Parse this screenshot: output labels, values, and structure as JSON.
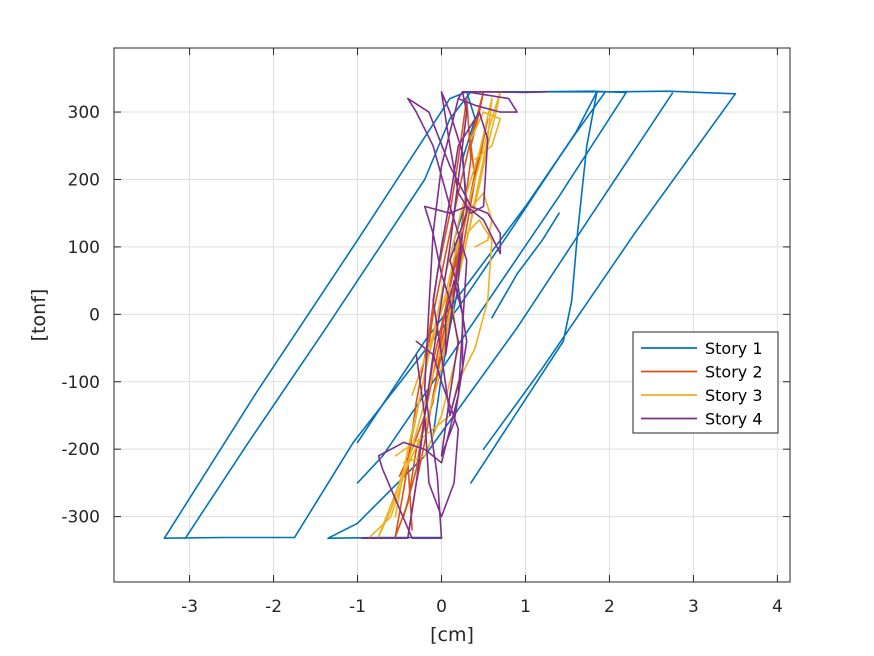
{
  "chart_data": {
    "type": "line",
    "xlabel": "[cm]",
    "ylabel": "[tonf]",
    "xlim": [
      -3.9,
      4.15
    ],
    "ylim": [
      -397,
      395
    ],
    "xticks": [
      -3,
      -2,
      -1,
      0,
      1,
      2,
      3,
      4
    ],
    "yticks": [
      -300,
      -200,
      -100,
      0,
      100,
      200,
      300
    ],
    "grid": true,
    "legend_position": "right",
    "series": [
      {
        "name": "Story 1",
        "color": "#0072BD",
        "segments": [
          {
            "x": [
              0.35,
              1.45,
              1.55,
              1.62,
              1.73,
              1.85
            ],
            "y": [
              -250,
              -40,
              20,
              120,
              250,
              330
            ]
          },
          {
            "x": [
              1.85,
              1.6,
              0.8,
              0.2,
              -1.05,
              -1.75
            ],
            "y": [
              330,
              270,
              120,
              10,
              -190,
              -331
            ]
          },
          {
            "x": [
              -1.75,
              -2.6,
              -3.3
            ],
            "y": [
              -331,
              -331,
              -332
            ]
          },
          {
            "x": [
              -3.3,
              -2.2,
              -1.0,
              0.1,
              0.3
            ],
            "y": [
              -332,
              -115,
              110,
              320,
              330
            ]
          },
          {
            "x": [
              0.3,
              1.1,
              1.8,
              2.2
            ],
            "y": [
              330,
              330,
              331,
              329
            ]
          },
          {
            "x": [
              2.2,
              1.4,
              0.5,
              -0.1,
              -0.7,
              -1.0
            ],
            "y": [
              329,
              175,
              10,
              -100,
              -210,
              -250
            ]
          },
          {
            "x": [
              -3.05,
              -2.3,
              -1.4,
              -0.2,
              0.1,
              0.35
            ],
            "y": [
              -332,
              -190,
              -25,
              200,
              290,
              330
            ]
          },
          {
            "x": [
              0.35,
              1.2,
              2.1,
              2.7,
              3.5
            ],
            "y": [
              330,
              330,
              330,
              331,
              327
            ]
          },
          {
            "x": [
              3.5,
              2.3,
              1.2,
              0.5
            ],
            "y": [
              327,
              120,
              -80,
              -200
            ]
          },
          {
            "x": [
              2.75,
              1.8,
              0.9,
              -0.2,
              -1.0,
              -1.35
            ],
            "y": [
              328,
              150,
              -20,
              -210,
              -310,
              -332
            ]
          },
          {
            "x": [
              -1.35,
              -0.6,
              0.0
            ],
            "y": [
              -332,
              -331,
              -331
            ]
          },
          {
            "x": [
              -1.0,
              -0.2,
              0.4,
              1.0,
              1.55,
              1.95
            ],
            "y": [
              -190,
              -40,
              60,
              160,
              260,
              330
            ]
          },
          {
            "x": [
              0.6,
              0.9,
              1.2,
              1.4
            ],
            "y": [
              -5,
              60,
              110,
              150
            ]
          },
          {
            "x": [
              -0.1,
              0.0,
              0.1,
              0.2,
              0.15,
              0.3,
              0.25,
              0.4,
              0.3
            ],
            "y": [
              -180,
              -90,
              -20,
              40,
              110,
              170,
              230,
              290,
              330
            ]
          }
        ]
      },
      {
        "name": "Story 2",
        "color": "#D95319",
        "segments": [
          {
            "x": [
              -0.4,
              -0.3,
              -0.2,
              -0.1,
              0.0,
              0.1,
              0.2,
              0.3,
              0.4,
              0.35,
              0.45,
              0.5
            ],
            "y": [
              -330,
              -250,
              -190,
              -120,
              -60,
              0,
              60,
              130,
              200,
              250,
              300,
              330
            ]
          },
          {
            "x": [
              0.5,
              0.35,
              0.2,
              0.05,
              -0.1,
              -0.2,
              -0.35,
              -0.45,
              -0.55
            ],
            "y": [
              330,
              260,
              180,
              90,
              0,
              -90,
              -180,
              -260,
              -330
            ]
          },
          {
            "x": [
              -0.55,
              -0.4,
              -0.3,
              -0.1,
              0.0,
              0.15,
              0.25,
              0.35,
              0.3
            ],
            "y": [
              -330,
              -280,
              -200,
              -130,
              -40,
              40,
              140,
              230,
              320
            ]
          },
          {
            "x": [
              0.3,
              0.2,
              0.1,
              -0.05,
              -0.15,
              -0.3,
              -0.4,
              -0.35
            ],
            "y": [
              320,
              230,
              150,
              60,
              -30,
              -130,
              -220,
              -320
            ]
          },
          {
            "x": [
              -0.5,
              -0.35,
              -0.2,
              -0.1,
              0.05,
              0.2,
              0.4,
              0.55
            ],
            "y": [
              -240,
              -200,
              -150,
              -70,
              10,
              110,
              200,
              290
            ]
          },
          {
            "x": [
              0.55,
              0.4,
              0.25,
              0.1,
              -0.05,
              -0.2,
              -0.3,
              -0.45
            ],
            "y": [
              290,
              210,
              120,
              40,
              -60,
              -150,
              -230,
              -300
            ]
          }
        ]
      },
      {
        "name": "Story 3",
        "color": "#EDB120",
        "segments": [
          {
            "x": [
              -0.85,
              -0.6,
              -0.4,
              -0.2,
              0.0,
              0.15,
              0.3,
              0.45,
              0.55,
              0.65,
              0.7
            ],
            "y": [
              -330,
              -300,
              -220,
              -130,
              -50,
              30,
              110,
              190,
              250,
              300,
              330
            ]
          },
          {
            "x": [
              0.7,
              0.55,
              0.4,
              0.2,
              0.05,
              -0.15,
              -0.3,
              -0.45,
              -0.6,
              -0.75
            ],
            "y": [
              330,
              270,
              200,
              110,
              30,
              -60,
              -150,
              -230,
              -290,
              -330
            ]
          },
          {
            "x": [
              -0.75,
              -0.5,
              -0.2,
              0.0,
              0.1,
              0.25,
              0.4,
              0.55,
              0.6
            ],
            "y": [
              -330,
              -250,
              -170,
              -80,
              0,
              80,
              170,
              260,
              320
            ]
          },
          {
            "x": [
              0.6,
              0.45,
              0.25,
              0.05,
              -0.1,
              -0.25,
              -0.4,
              -0.55
            ],
            "y": [
              320,
              240,
              160,
              60,
              -30,
              -120,
              -200,
              -300
            ]
          },
          {
            "x": [
              -0.55,
              -0.2,
              0.1,
              0.2,
              0.4,
              0.55,
              0.6,
              0.45,
              0.3
            ],
            "y": [
              -210,
              -180,
              -150,
              -100,
              -50,
              20,
              110,
              140,
              120
            ]
          },
          {
            "x": [
              0.3,
              0.5,
              0.6,
              0.55,
              0.4
            ],
            "y": [
              150,
              180,
              140,
              110,
              100
            ]
          },
          {
            "x": [
              0.4,
              0.6,
              0.7,
              0.5,
              0.35
            ],
            "y": [
              230,
              250,
              290,
              300,
              260
            ]
          },
          {
            "x": [
              -0.45,
              -0.2,
              0.0,
              0.2,
              0.1,
              -0.1,
              -0.35
            ],
            "y": [
              -220,
              -210,
              -150,
              -50,
              40,
              -30,
              -120
            ]
          }
        ]
      },
      {
        "name": "Story 4",
        "color": "#7E2F8E",
        "segments": [
          {
            "x": [
              -0.95,
              -0.6,
              -0.4,
              -0.3,
              -0.2,
              -0.1,
              0.0,
              0.1,
              0.2,
              0.3,
              0.25
            ],
            "y": [
              -332,
              -332,
              -332,
              -250,
              -150,
              -60,
              20,
              100,
              200,
              300,
              330
            ]
          },
          {
            "x": [
              0.25,
              0.6,
              1.0,
              1.25
            ],
            "y": [
              330,
              330,
              329,
              330
            ]
          },
          {
            "x": [
              0.3,
              0.8,
              0.9,
              0.7,
              0.4,
              0.2,
              0.25
            ],
            "y": [
              330,
              320,
              300,
              300,
              310,
              320,
              330
            ]
          },
          {
            "x": [
              0.2,
              0.0,
              -0.1,
              -0.15,
              -0.2,
              -0.05,
              0.0
            ],
            "y": [
              320,
              220,
              120,
              10,
              -110,
              -240,
              -332
            ]
          },
          {
            "x": [
              0.0,
              -0.35,
              -0.7,
              -0.75,
              -0.45,
              -0.2,
              0.0
            ],
            "y": [
              -332,
              -332,
              -230,
              -210,
              -190,
              -200,
              -220
            ]
          },
          {
            "x": [
              0.0,
              0.2,
              0.25,
              0.3,
              0.1,
              -0.1,
              -0.3,
              -0.4
            ],
            "y": [
              -220,
              -120,
              -20,
              80,
              160,
              250,
              300,
              320
            ]
          },
          {
            "x": [
              -0.4,
              -0.15,
              0.1,
              0.35,
              0.55,
              0.7,
              0.7,
              0.5,
              0.3,
              0.1,
              -0.2,
              -0.1
            ],
            "y": [
              320,
              300,
              220,
              160,
              150,
              120,
              90,
              140,
              160,
              150,
              160,
              120
            ]
          },
          {
            "x": [
              -0.1,
              0.0,
              0.1,
              0.2,
              0.1,
              0.0,
              0.15,
              0.3,
              0.2,
              0.1
            ],
            "y": [
              120,
              60,
              20,
              -40,
              -120,
              -210,
              -160,
              -40,
              40,
              80
            ]
          },
          {
            "x": [
              0.1,
              0.3,
              0.25,
              0.1,
              0.0,
              0.1,
              0.2,
              0.35,
              0.5,
              0.55
            ],
            "y": [
              80,
              150,
              240,
              300,
              330,
              250,
              180,
              150,
              160,
              260
            ]
          },
          {
            "x": [
              0.55,
              0.45,
              0.2,
              0.1,
              0.0,
              -0.1,
              0.0,
              0.1
            ],
            "y": [
              260,
              300,
              250,
              170,
              100,
              20,
              -60,
              -150
            ]
          },
          {
            "x": [
              0.1,
              0.25,
              0.25,
              0.15,
              0.05,
              0.05,
              0.15,
              0.25,
              0.2
            ],
            "y": [
              -150,
              -80,
              0,
              50,
              0,
              -60,
              30,
              120,
              50
            ]
          },
          {
            "x": [
              -0.3,
              -0.1,
              0.0,
              0.2,
              0.15,
              0.0,
              -0.15,
              -0.2,
              -0.3
            ],
            "y": [
              -40,
              -60,
              -100,
              -170,
              -250,
              -300,
              -250,
              -150,
              -60
            ]
          }
        ]
      }
    ]
  }
}
